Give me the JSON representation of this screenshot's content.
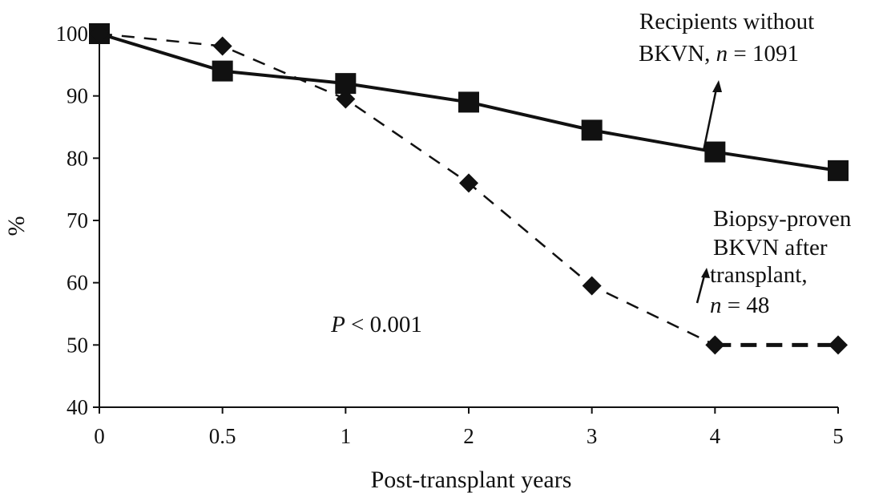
{
  "chart_data": {
    "type": "line",
    "xlabel": "Post-transplant years",
    "ylabel": "%",
    "x_tick_labels": [
      "0",
      "0.5",
      "1",
      "2",
      "3",
      "4",
      "5"
    ],
    "y_ticks": [
      40,
      50,
      60,
      70,
      80,
      90,
      100
    ],
    "ylim": [
      40,
      100
    ],
    "grid": false,
    "series": [
      {
        "name": "Recipients without BKVN, n = 1091",
        "marker": "square",
        "line_style": "solid",
        "x": [
          0,
          0.5,
          1,
          2,
          3,
          4,
          5
        ],
        "y": [
          100,
          94,
          92,
          89,
          84.5,
          81,
          78
        ]
      },
      {
        "name": "Biopsy-proven BKVN after transplant, n = 48",
        "marker": "diamond",
        "line_style": "dashed",
        "x": [
          0,
          0.5,
          1,
          2,
          3,
          4,
          5
        ],
        "y": [
          100,
          98,
          89.5,
          76,
          59.5,
          50,
          50
        ]
      }
    ],
    "annotations": {
      "p_value": "P < 0.001",
      "series1_label": [
        "Recipients without",
        "BKVN, n = 1091"
      ],
      "series2_label": [
        "Biopsy-proven",
        "BKVN after",
        "transplant,",
        "n = 48"
      ]
    },
    "colors": {
      "line": "#111111",
      "background": "#ffffff"
    }
  }
}
